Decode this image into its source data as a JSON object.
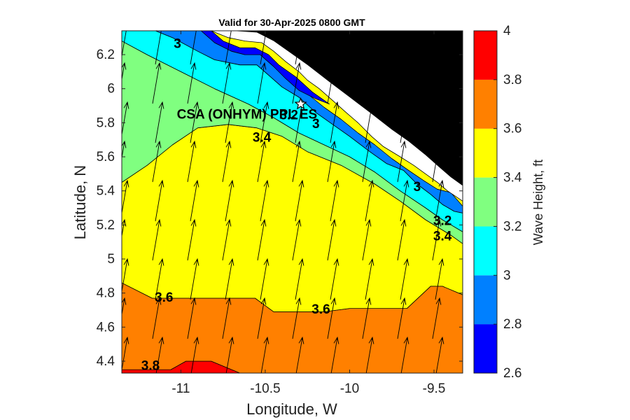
{
  "title": "Valid for 30-Apr-2025 0800 GMT",
  "xlabel": "Longitude, W",
  "ylabel": "Latitude, N",
  "xticks": [
    "-11",
    "-10.5",
    "-10",
    "-9.5"
  ],
  "yticks": [
    "6.2",
    "6",
    "5.8",
    "5.6",
    "5.4",
    "5.2",
    "5",
    "4.8",
    "4.6",
    "4.4"
  ],
  "site": {
    "label": "CSA (ONHYM) PPL ES",
    "lon": -10.29,
    "lat": 5.91,
    "marker": "star-icon"
  },
  "colorbar": {
    "label": "Wave Height, ft",
    "ticks": [
      "2.6",
      "2.8",
      "3",
      "3.2",
      "3.4",
      "3.6",
      "3.8",
      "4"
    ],
    "levels": [
      {
        "min": 2.6,
        "max": 2.8,
        "color": "#0000ff"
      },
      {
        "min": 2.8,
        "max": 3.0,
        "color": "#0080ff"
      },
      {
        "min": 3.0,
        "max": 3.2,
        "color": "#00ffff"
      },
      {
        "min": 3.2,
        "max": 3.4,
        "color": "#80ff80"
      },
      {
        "min": 3.4,
        "max": 3.6,
        "color": "#ffff00"
      },
      {
        "min": 3.6,
        "max": 3.8,
        "color": "#ff8000"
      },
      {
        "min": 3.8,
        "max": 4.0,
        "color": "#ff0000"
      }
    ]
  },
  "contour_labels": [
    {
      "text": "3",
      "lon": -11.02,
      "lat": 6.26
    },
    {
      "text": "3.2",
      "lon": -10.36,
      "lat": 5.84
    },
    {
      "text": "3",
      "lon": -10.2,
      "lat": 5.79
    },
    {
      "text": "3.4",
      "lon": -10.52,
      "lat": 5.71
    },
    {
      "text": "3",
      "lon": -9.6,
      "lat": 5.42
    },
    {
      "text": "3.2",
      "lon": -9.45,
      "lat": 5.22
    },
    {
      "text": "3.4",
      "lon": -9.45,
      "lat": 5.13
    },
    {
      "text": "3.6",
      "lon": -11.1,
      "lat": 4.77
    },
    {
      "text": "3.6",
      "lon": -10.17,
      "lat": 4.7
    },
    {
      "text": "3.8",
      "lon": -11.18,
      "lat": 4.37
    }
  ],
  "chart_data": {
    "type": "heatmap",
    "title": "Valid for 30-Apr-2025 0800 GMT",
    "xlabel": "Longitude, W",
    "ylabel": "Latitude, N",
    "xlim": [
      -11.35,
      -9.33
    ],
    "ylim": [
      4.33,
      6.34
    ],
    "clim": [
      2.6,
      4.0
    ],
    "legend": "colorbar-right",
    "grid": false,
    "contour_levels": [
      3.0,
      3.2,
      3.4,
      3.6,
      3.8
    ],
    "arrows": "wave direction, northward with slight eastward component",
    "land_color": "#000000",
    "bands": [
      {
        "min": 3.8,
        "max": 4.0,
        "color": "#ff0000",
        "boundary": [
          [
            -11.35,
            4.33
          ],
          [
            -11.35,
            4.35
          ],
          [
            -11.06,
            4.35
          ],
          [
            -10.97,
            4.4
          ],
          [
            -10.82,
            4.4
          ],
          [
            -10.65,
            4.33
          ]
        ]
      },
      {
        "min": 3.6,
        "max": 3.8,
        "color": "#ff8000",
        "boundary": [
          [
            -11.35,
            4.35
          ],
          [
            -11.35,
            4.86
          ],
          [
            -11.17,
            4.77
          ],
          [
            -10.82,
            4.77
          ],
          [
            -10.56,
            4.77
          ],
          [
            -10.45,
            4.69
          ],
          [
            -10.15,
            4.69
          ],
          [
            -10.0,
            4.71
          ],
          [
            -9.66,
            4.71
          ],
          [
            -9.52,
            4.84
          ],
          [
            -9.45,
            4.84
          ],
          [
            -9.33,
            4.79
          ],
          [
            -9.33,
            4.33
          ],
          [
            -10.65,
            4.33
          ],
          [
            -10.82,
            4.4
          ],
          [
            -10.97,
            4.4
          ],
          [
            -11.06,
            4.35
          ]
        ]
      },
      {
        "min": 3.4,
        "max": 3.6,
        "color": "#ffff00",
        "boundary": [
          [
            -11.35,
            4.86
          ],
          [
            -11.35,
            5.45
          ],
          [
            -11.2,
            5.55
          ],
          [
            -11.05,
            5.67
          ],
          [
            -10.9,
            5.77
          ],
          [
            -10.72,
            5.79
          ],
          [
            -10.55,
            5.77
          ],
          [
            -10.4,
            5.72
          ],
          [
            -10.25,
            5.63
          ],
          [
            -10.05,
            5.55
          ],
          [
            -9.85,
            5.44
          ],
          [
            -9.7,
            5.34
          ],
          [
            -9.55,
            5.23
          ],
          [
            -9.4,
            5.14
          ],
          [
            -9.33,
            5.09
          ],
          [
            -9.33,
            4.79
          ],
          [
            -9.45,
            4.84
          ],
          [
            -9.52,
            4.84
          ],
          [
            -9.66,
            4.71
          ],
          [
            -10.0,
            4.71
          ],
          [
            -10.15,
            4.69
          ],
          [
            -10.45,
            4.69
          ],
          [
            -10.56,
            4.77
          ],
          [
            -10.82,
            4.77
          ],
          [
            -11.17,
            4.77
          ]
        ]
      },
      {
        "min": 3.2,
        "max": 3.4,
        "color": "#80ff80",
        "boundary": [
          [
            -11.35,
            5.45
          ],
          [
            -11.35,
            6.28
          ],
          [
            -11.2,
            6.2
          ],
          [
            -11.0,
            6.1
          ],
          [
            -10.8,
            6.0
          ],
          [
            -10.6,
            5.91
          ],
          [
            -10.45,
            5.83
          ],
          [
            -10.3,
            5.74
          ],
          [
            -10.15,
            5.67
          ],
          [
            -10.0,
            5.6
          ],
          [
            -9.85,
            5.51
          ],
          [
            -9.7,
            5.4
          ],
          [
            -9.55,
            5.3
          ],
          [
            -9.45,
            5.23
          ],
          [
            -9.33,
            5.16
          ],
          [
            -9.33,
            5.09
          ],
          [
            -9.4,
            5.14
          ],
          [
            -9.55,
            5.23
          ],
          [
            -9.7,
            5.34
          ],
          [
            -9.85,
            5.44
          ],
          [
            -10.05,
            5.55
          ],
          [
            -10.25,
            5.63
          ],
          [
            -10.4,
            5.72
          ],
          [
            -10.55,
            5.77
          ],
          [
            -10.72,
            5.79
          ],
          [
            -10.9,
            5.77
          ],
          [
            -11.05,
            5.67
          ],
          [
            -11.2,
            5.55
          ]
        ]
      },
      {
        "min": 3.0,
        "max": 3.2,
        "color": "#00ffff",
        "boundary": [
          [
            -11.35,
            6.28
          ],
          [
            -11.35,
            6.34
          ],
          [
            -11.15,
            6.34
          ],
          [
            -11.05,
            6.3
          ],
          [
            -10.9,
            6.22
          ],
          [
            -10.8,
            6.17
          ],
          [
            -10.65,
            6.14
          ],
          [
            -10.55,
            6.14
          ],
          [
            -10.48,
            6.08
          ],
          [
            -10.4,
            6.01
          ],
          [
            -10.3,
            5.95
          ],
          [
            -10.2,
            5.86
          ],
          [
            -10.1,
            5.79
          ],
          [
            -10.0,
            5.72
          ],
          [
            -9.88,
            5.63
          ],
          [
            -9.78,
            5.56
          ],
          [
            -9.68,
            5.52
          ],
          [
            -9.6,
            5.44
          ],
          [
            -9.52,
            5.38
          ],
          [
            -9.45,
            5.32
          ],
          [
            -9.38,
            5.28
          ],
          [
            -9.33,
            5.27
          ],
          [
            -9.33,
            5.16
          ],
          [
            -9.45,
            5.23
          ],
          [
            -9.55,
            5.3
          ],
          [
            -9.7,
            5.4
          ],
          [
            -9.85,
            5.51
          ],
          [
            -10.0,
            5.6
          ],
          [
            -10.15,
            5.67
          ],
          [
            -10.3,
            5.74
          ],
          [
            -10.45,
            5.83
          ],
          [
            -10.6,
            5.91
          ],
          [
            -10.8,
            6.0
          ],
          [
            -11.0,
            6.1
          ],
          [
            -11.2,
            6.2
          ]
        ]
      },
      {
        "min": 2.8,
        "max": 3.0,
        "color": "#0080ff",
        "boundary": [
          [
            -11.15,
            6.34
          ],
          [
            -10.88,
            6.34
          ],
          [
            -10.8,
            6.27
          ],
          [
            -10.7,
            6.22
          ],
          [
            -10.62,
            6.2
          ],
          [
            -10.53,
            6.2
          ],
          [
            -10.45,
            6.13
          ],
          [
            -10.35,
            6.04
          ],
          [
            -10.25,
            5.97
          ],
          [
            -10.15,
            5.89
          ],
          [
            -10.05,
            5.82
          ],
          [
            -9.95,
            5.74
          ],
          [
            -9.85,
            5.67
          ],
          [
            -9.75,
            5.59
          ],
          [
            -9.65,
            5.52
          ],
          [
            -9.56,
            5.46
          ],
          [
            -9.48,
            5.41
          ],
          [
            -9.4,
            5.39
          ],
          [
            -9.33,
            5.31
          ],
          [
            -9.33,
            5.27
          ],
          [
            -9.38,
            5.28
          ],
          [
            -9.45,
            5.32
          ],
          [
            -9.52,
            5.38
          ],
          [
            -9.6,
            5.44
          ],
          [
            -9.68,
            5.52
          ],
          [
            -9.78,
            5.56
          ],
          [
            -9.88,
            5.63
          ],
          [
            -10.0,
            5.72
          ],
          [
            -10.1,
            5.79
          ],
          [
            -10.2,
            5.86
          ],
          [
            -10.3,
            5.95
          ],
          [
            -10.4,
            6.01
          ],
          [
            -10.48,
            6.08
          ],
          [
            -10.55,
            6.14
          ],
          [
            -10.65,
            6.14
          ],
          [
            -10.8,
            6.17
          ],
          [
            -10.9,
            6.22
          ],
          [
            -11.05,
            6.3
          ]
        ]
      },
      {
        "min": 2.6,
        "max": 2.8,
        "color": "#0000ff",
        "boundary": [
          [
            -10.88,
            6.34
          ],
          [
            -10.82,
            6.34
          ],
          [
            -10.75,
            6.28
          ],
          [
            -10.65,
            6.24
          ],
          [
            -10.56,
            6.24
          ],
          [
            -10.48,
            6.2
          ],
          [
            -10.42,
            6.14
          ],
          [
            -10.32,
            6.07
          ],
          [
            -10.22,
            5.98
          ],
          [
            -10.12,
            5.91
          ],
          [
            -10.2,
            5.94
          ],
          [
            -10.3,
            5.99
          ],
          [
            -10.38,
            6.06
          ],
          [
            -10.45,
            6.13
          ],
          [
            -10.53,
            6.2
          ],
          [
            -10.62,
            6.2
          ],
          [
            -10.7,
            6.22
          ],
          [
            -10.8,
            6.27
          ]
        ]
      }
    ],
    "coast": [
      [
        -10.82,
        6.34
      ],
      [
        -10.72,
        6.3
      ],
      [
        -10.62,
        6.28
      ],
      [
        -10.52,
        6.27
      ],
      [
        -10.45,
        6.22
      ],
      [
        -10.38,
        6.16
      ],
      [
        -10.3,
        6.1
      ],
      [
        -10.25,
        6.05
      ],
      [
        -10.18,
        6.0
      ],
      [
        -10.1,
        5.93
      ],
      [
        -10.02,
        5.86
      ],
      [
        -9.95,
        5.8
      ],
      [
        -9.87,
        5.72
      ],
      [
        -9.8,
        5.66
      ],
      [
        -9.7,
        5.6
      ],
      [
        -9.62,
        5.55
      ],
      [
        -9.55,
        5.5
      ],
      [
        -9.48,
        5.45
      ],
      [
        -9.42,
        5.4
      ],
      [
        -9.36,
        5.36
      ],
      [
        -9.33,
        5.34
      ]
    ],
    "shore_strip": [
      [
        -10.82,
        6.34
      ],
      [
        -10.7,
        6.34
      ],
      [
        -10.55,
        6.33
      ],
      [
        -10.45,
        6.28
      ],
      [
        -10.35,
        6.21
      ],
      [
        -10.25,
        6.14
      ],
      [
        -10.12,
        6.04
      ],
      [
        -10.0,
        5.95
      ],
      [
        -9.88,
        5.86
      ],
      [
        -9.75,
        5.76
      ],
      [
        -9.65,
        5.69
      ],
      [
        -9.55,
        5.61
      ],
      [
        -9.47,
        5.54
      ],
      [
        -9.4,
        5.48
      ],
      [
        -9.33,
        5.43
      ],
      [
        -9.33,
        5.34
      ],
      [
        -9.36,
        5.36
      ],
      [
        -9.42,
        5.4
      ],
      [
        -9.48,
        5.45
      ],
      [
        -9.55,
        5.5
      ],
      [
        -9.62,
        5.55
      ],
      [
        -9.7,
        5.6
      ],
      [
        -9.8,
        5.66
      ],
      [
        -9.87,
        5.72
      ],
      [
        -9.95,
        5.8
      ],
      [
        -10.02,
        5.86
      ],
      [
        -10.1,
        5.93
      ],
      [
        -10.18,
        6.0
      ],
      [
        -10.25,
        6.05
      ],
      [
        -10.3,
        6.1
      ],
      [
        -10.38,
        6.16
      ],
      [
        -10.45,
        6.22
      ],
      [
        -10.52,
        6.27
      ],
      [
        -10.62,
        6.28
      ],
      [
        -10.72,
        6.3
      ]
    ]
  }
}
